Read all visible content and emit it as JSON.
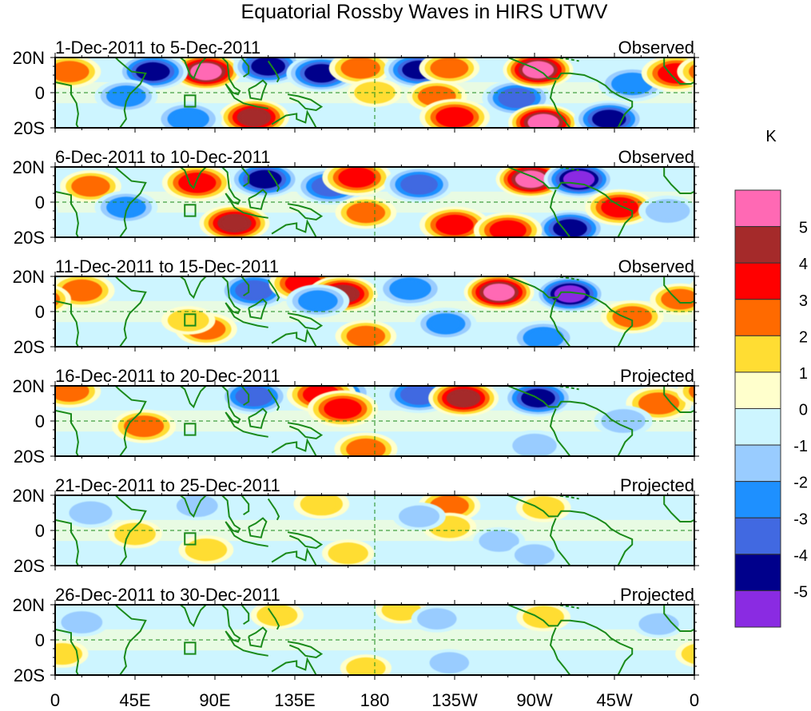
{
  "chart_data": {
    "type": "heatmap",
    "title": "Equatorial Rossby Waves in HIRS UTWV",
    "xlabel": "",
    "ylabel": "",
    "x_ticks": [
      "0",
      "45E",
      "90E",
      "135E",
      "180",
      "135W",
      "90W",
      "45W",
      "0"
    ],
    "x_range_deg": [
      0,
      360
    ],
    "y_ticks": [
      "20N",
      "0",
      "20S"
    ],
    "y_range_deg": [
      -20,
      20
    ],
    "colorbar": {
      "units": "K",
      "levels": [
        5,
        4,
        3,
        2,
        1,
        0,
        -1,
        -2,
        -3,
        -4,
        -5
      ],
      "tick_labels": [
        "5",
        "4",
        "3",
        "2",
        "1",
        "0",
        "-1",
        "-2",
        "-3",
        "-4",
        "-5"
      ],
      "colors_top_to_bottom": [
        "#ff69b4",
        "#a52a2a",
        "#ff0000",
        "#ff6a00",
        "#ffdd33",
        "#ffffcc",
        "#cdf5ff",
        "#99ccff",
        "#1e90ff",
        "#4169e1",
        "#00008b",
        "#8a2be2"
      ],
      "placement": "right"
    },
    "panels": [
      {
        "period": "1-Dec-2011 to 5-Dec-2011",
        "status": "Observed",
        "features": [
          {
            "lon": 85,
            "lat": 12,
            "value": 5.5
          },
          {
            "lon": 55,
            "lat": 12,
            "value": -4.2
          },
          {
            "lon": 120,
            "lat": 15,
            "value": -4.5
          },
          {
            "lon": 150,
            "lat": 11,
            "value": -4.2
          },
          {
            "lon": 112,
            "lat": -14,
            "value": 4.5
          },
          {
            "lon": 172,
            "lat": 14,
            "value": 2.5
          },
          {
            "lon": 205,
            "lat": 13,
            "value": -4.3
          },
          {
            "lon": 222,
            "lat": 14,
            "value": 2.2
          },
          {
            "lon": 215,
            "lat": -2,
            "value": 2.2
          },
          {
            "lon": 225,
            "lat": -14,
            "value": 3.8
          },
          {
            "lon": 260,
            "lat": -3,
            "value": -3.2
          },
          {
            "lon": 272,
            "lat": 13,
            "value": 5.5
          },
          {
            "lon": 275,
            "lat": -17,
            "value": 5.2
          },
          {
            "lon": 312,
            "lat": -15,
            "value": -4.6
          },
          {
            "lon": 325,
            "lat": 5,
            "value": -3.0
          },
          {
            "lon": 350,
            "lat": 11,
            "value": 3.6
          },
          {
            "lon": 8,
            "lat": 12,
            "value": 2.5
          },
          {
            "lon": 180,
            "lat": 0,
            "value": 1.5
          },
          {
            "lon": 40,
            "lat": -2,
            "value": -2.5
          },
          {
            "lon": 75,
            "lat": -15,
            "value": -3.0
          }
        ]
      },
      {
        "period": "6-Dec-2011 to 10-Dec-2011",
        "status": "Observed",
        "features": [
          {
            "lon": 80,
            "lat": 11,
            "value": 3.5
          },
          {
            "lon": 118,
            "lat": 13,
            "value": -4.6
          },
          {
            "lon": 101,
            "lat": -12,
            "value": 4.3
          },
          {
            "lon": 155,
            "lat": 9,
            "value": -3.5
          },
          {
            "lon": 170,
            "lat": 14,
            "value": 3.2
          },
          {
            "lon": 175,
            "lat": -6,
            "value": 2.3
          },
          {
            "lon": 205,
            "lat": 10,
            "value": -3.2
          },
          {
            "lon": 225,
            "lat": -13,
            "value": 3.5
          },
          {
            "lon": 268,
            "lat": 13,
            "value": 5.6
          },
          {
            "lon": 295,
            "lat": 13,
            "value": -5.5
          },
          {
            "lon": 290,
            "lat": -15,
            "value": -4.3
          },
          {
            "lon": 318,
            "lat": -3,
            "value": 3.2
          },
          {
            "lon": 20,
            "lat": 9,
            "value": 2.3
          },
          {
            "lon": 40,
            "lat": -3,
            "value": -2.5
          },
          {
            "lon": 255,
            "lat": -16,
            "value": 3.1
          },
          {
            "lon": 345,
            "lat": -5,
            "value": -2.0
          }
        ]
      },
      {
        "period": "11-Dec-2011 to 15-Dec-2011",
        "status": "Observed",
        "features": [
          {
            "lon": 15,
            "lat": 12,
            "value": 2.8
          },
          {
            "lon": 112,
            "lat": 12,
            "value": -3.8
          },
          {
            "lon": 140,
            "lat": 16,
            "value": 3.2
          },
          {
            "lon": 162,
            "lat": 10,
            "value": 4.2
          },
          {
            "lon": 148,
            "lat": 6,
            "value": -2.5
          },
          {
            "lon": 85,
            "lat": -10,
            "value": 2.4
          },
          {
            "lon": 75,
            "lat": -5,
            "value": 1.5
          },
          {
            "lon": 175,
            "lat": -14,
            "value": 2.3
          },
          {
            "lon": 200,
            "lat": 13,
            "value": -3.0
          },
          {
            "lon": 250,
            "lat": 11,
            "value": 5.4
          },
          {
            "lon": 290,
            "lat": 10,
            "value": -5.6
          },
          {
            "lon": 325,
            "lat": -3,
            "value": 2.5
          },
          {
            "lon": 220,
            "lat": -7,
            "value": -2.4
          },
          {
            "lon": 275,
            "lat": -15,
            "value": -2.8
          },
          {
            "lon": 352,
            "lat": 7,
            "value": 2.2
          }
        ]
      },
      {
        "period": "16-Dec-2011 to 20-Dec-2011",
        "status": "Projected",
        "features": [
          {
            "lon": 50,
            "lat": -3,
            "value": 2.6
          },
          {
            "lon": 112,
            "lat": 14,
            "value": -3.2
          },
          {
            "lon": 160,
            "lat": 16,
            "value": -3.0
          },
          {
            "lon": 150,
            "lat": 15,
            "value": 3.2
          },
          {
            "lon": 162,
            "lat": 7,
            "value": 3.5
          },
          {
            "lon": 205,
            "lat": 15,
            "value": -3.3
          },
          {
            "lon": 230,
            "lat": 13,
            "value": 4.2
          },
          {
            "lon": 272,
            "lat": 13,
            "value": -4.3
          },
          {
            "lon": 340,
            "lat": 10,
            "value": 2.8
          },
          {
            "lon": 175,
            "lat": -16,
            "value": 2.5
          },
          {
            "lon": 8,
            "lat": 17,
            "value": 2.5
          },
          {
            "lon": 320,
            "lat": 0,
            "value": -2.0
          },
          {
            "lon": 270,
            "lat": -14,
            "value": -2.0
          }
        ]
      },
      {
        "period": "21-Dec-2011 to 25-Dec-2011",
        "status": "Projected",
        "features": [
          {
            "lon": 20,
            "lat": 10,
            "value": -1.8
          },
          {
            "lon": 45,
            "lat": -2,
            "value": 1.5
          },
          {
            "lon": 85,
            "lat": -11,
            "value": 1.6
          },
          {
            "lon": 80,
            "lat": 14,
            "value": -1.5
          },
          {
            "lon": 150,
            "lat": 15,
            "value": 1.7
          },
          {
            "lon": 165,
            "lat": -13,
            "value": 1.3
          },
          {
            "lon": 222,
            "lat": 14,
            "value": 2.4
          },
          {
            "lon": 222,
            "lat": 2,
            "value": 1.5
          },
          {
            "lon": 275,
            "lat": 13,
            "value": 1.6
          },
          {
            "lon": 205,
            "lat": 8,
            "value": -1.4
          },
          {
            "lon": 250,
            "lat": -6,
            "value": -1.3
          },
          {
            "lon": 270,
            "lat": -14,
            "value": -1.3
          }
        ]
      },
      {
        "period": "26-Dec-2011 to 30-Dec-2011",
        "status": "Projected",
        "features": [
          {
            "lon": 15,
            "lat": 10,
            "value": -1.5
          },
          {
            "lon": 4,
            "lat": -8,
            "value": 1.3
          },
          {
            "lon": 125,
            "lat": 14,
            "value": 1.4
          },
          {
            "lon": 175,
            "lat": -16,
            "value": 1.2
          },
          {
            "lon": 195,
            "lat": 17,
            "value": 1.2
          },
          {
            "lon": 275,
            "lat": 13,
            "value": 1.5
          },
          {
            "lon": 340,
            "lat": 9,
            "value": -1.3
          },
          {
            "lon": 215,
            "lat": 12,
            "value": -1.2
          },
          {
            "lon": 222,
            "lat": -13,
            "value": -1.2
          }
        ]
      }
    ]
  }
}
